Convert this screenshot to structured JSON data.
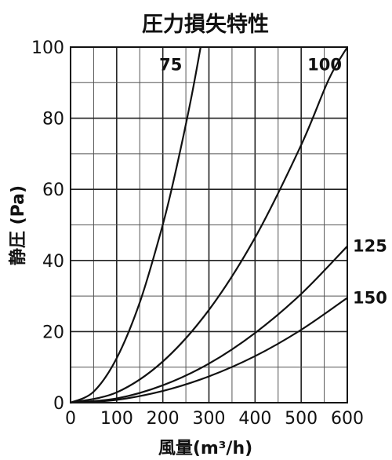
{
  "chart_data": {
    "type": "line",
    "title": "圧力損失特性",
    "xlabel": "風量(m³/h)",
    "ylabel": "静圧 (Pa)",
    "xlim": [
      0,
      600
    ],
    "ylim": [
      0,
      100
    ],
    "xticks": [
      "0",
      "100",
      "200",
      "300",
      "400",
      "500",
      "600"
    ],
    "yticks": [
      "0",
      "20",
      "40",
      "60",
      "80",
      "100"
    ],
    "grid": true,
    "series": [
      {
        "name": "75",
        "x": [
          0,
          50,
          100,
          150,
          200,
          230,
          260,
          282
        ],
        "y": [
          0,
          3.1,
          12.5,
          28.2,
          50.1,
          66.3,
          84.7,
          100
        ]
      },
      {
        "name": "100",
        "x": [
          0,
          100,
          200,
          300,
          400,
          500,
          560,
          600
        ],
        "y": [
          0,
          2.9,
          11.6,
          26.1,
          46.4,
          72.5,
          91.0,
          100
        ]
      },
      {
        "name": "125",
        "x": [
          0,
          100,
          200,
          300,
          400,
          500,
          600
        ],
        "y": [
          0,
          1.2,
          4.9,
          11.0,
          19.6,
          30.6,
          44
        ]
      },
      {
        "name": "150",
        "x": [
          0,
          100,
          200,
          300,
          400,
          500,
          600
        ],
        "y": [
          0,
          0.8,
          3.3,
          7.4,
          13.1,
          20.5,
          29.5
        ]
      }
    ]
  }
}
